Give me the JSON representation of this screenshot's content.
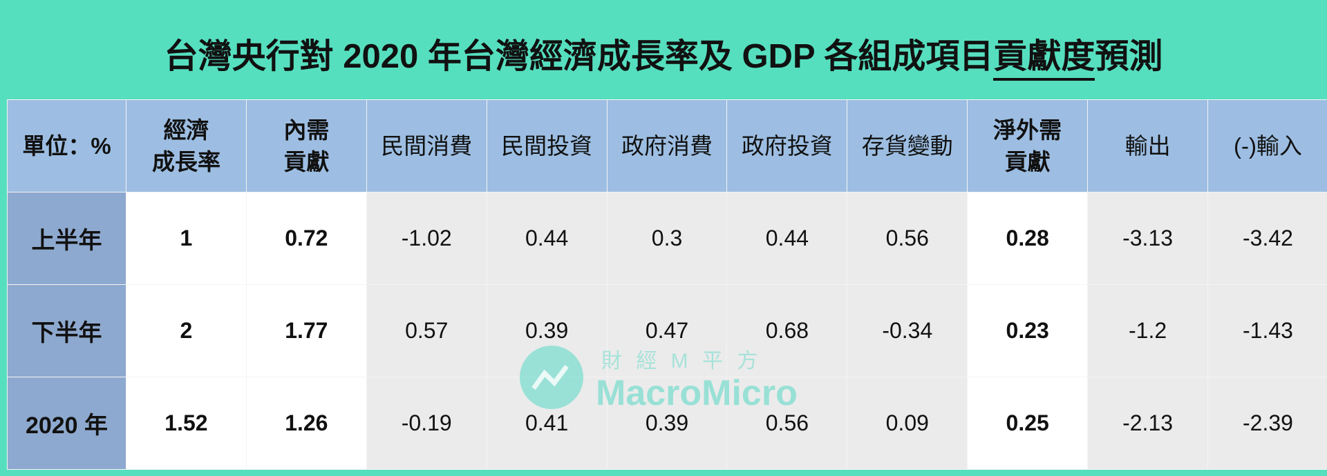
{
  "title": {
    "before": "台灣央行對 2020 年台灣經濟成長率及 GDP 各組成項目",
    "underlined": "貢獻度",
    "after": "預測"
  },
  "table": {
    "header": [
      [
        "單位：%"
      ],
      [
        "經濟",
        "成長率"
      ],
      [
        "內需",
        "貢獻"
      ],
      [
        "民間消費"
      ],
      [
        "民間投資"
      ],
      [
        "政府消費"
      ],
      [
        "政府投資"
      ],
      [
        "存貨變動"
      ],
      [
        "淨外需",
        "貢獻"
      ],
      [
        "輸出"
      ],
      [
        "(-)輸入"
      ]
    ],
    "rows": [
      [
        "上半年",
        "1",
        "0.72",
        "-1.02",
        "0.44",
        "0.3",
        "0.44",
        "0.56",
        "0.28",
        "-3.13",
        "-3.42"
      ],
      [
        "下半年",
        "2",
        "1.77",
        "0.57",
        "0.39",
        "0.47",
        "0.68",
        "-0.34",
        "0.23",
        "-1.2",
        "-1.43"
      ],
      [
        "2020 年",
        "1.52",
        "1.26",
        "-0.19",
        "0.41",
        "0.39",
        "0.56",
        "0.09",
        "0.25",
        "-2.13",
        "-2.39"
      ]
    ]
  },
  "watermark": {
    "tagline": "財 經 M 平 方",
    "brand": "MacroMicro"
  }
}
